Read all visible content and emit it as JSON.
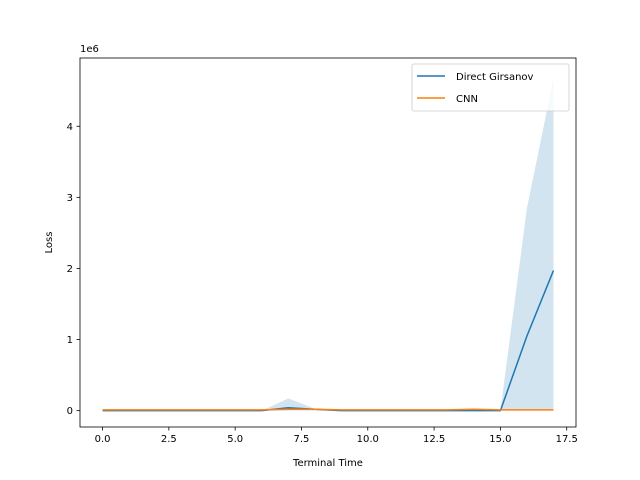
{
  "chart_data": {
    "type": "line",
    "xlabel": "Terminal Time",
    "ylabel": "Loss",
    "y_offset_label": "1e6",
    "xlim": [
      -0.85,
      17.85
    ],
    "ylim": [
      -0.23,
      4.96
    ],
    "y_scale_note": "values in units of 1e6",
    "x_ticks": [
      0.0,
      2.5,
      5.0,
      7.5,
      10.0,
      12.5,
      15.0,
      17.5
    ],
    "x_tick_labels": [
      "0.0",
      "2.5",
      "5.0",
      "7.5",
      "10.0",
      "12.5",
      "15.0",
      "17.5"
    ],
    "y_ticks": [
      0,
      1,
      2,
      3,
      4
    ],
    "y_tick_labels": [
      "0",
      "1",
      "2",
      "3",
      "4"
    ],
    "grid": false,
    "legend_position": "top-right",
    "x": [
      0,
      1,
      2,
      3,
      4,
      5,
      6,
      7,
      8,
      9,
      10,
      11,
      12,
      13,
      14,
      15,
      16,
      17
    ],
    "series": [
      {
        "name": "Direct Girsanov",
        "color": "#1f77b4",
        "values": [
          0.0,
          0.0,
          0.0,
          0.0,
          0.0,
          0.0,
          0.0,
          0.04,
          0.02,
          0.0,
          0.0,
          0.0,
          0.0,
          0.0,
          0.0,
          0.0,
          1.05,
          1.97
        ],
        "band_upper": [
          0.0,
          0.0,
          0.0,
          0.0,
          0.0,
          0.0,
          0.0,
          0.17,
          0.03,
          0.0,
          0.0,
          0.0,
          0.0,
          0.0,
          0.0,
          0.0,
          2.85,
          4.67
        ],
        "band_lower": [
          0.0,
          0.0,
          0.0,
          0.0,
          0.0,
          0.0,
          0.0,
          0.0,
          0.0,
          0.0,
          0.0,
          0.0,
          0.0,
          0.0,
          0.0,
          0.0,
          0.0,
          0.0
        ],
        "band_color": "#1f77b4"
      },
      {
        "name": "CNN",
        "color": "#ff7f0e",
        "values": [
          0.01,
          0.01,
          0.01,
          0.01,
          0.01,
          0.01,
          0.01,
          0.02,
          0.02,
          0.01,
          0.01,
          0.01,
          0.01,
          0.01,
          0.02,
          0.01,
          0.01,
          0.01
        ]
      }
    ]
  }
}
